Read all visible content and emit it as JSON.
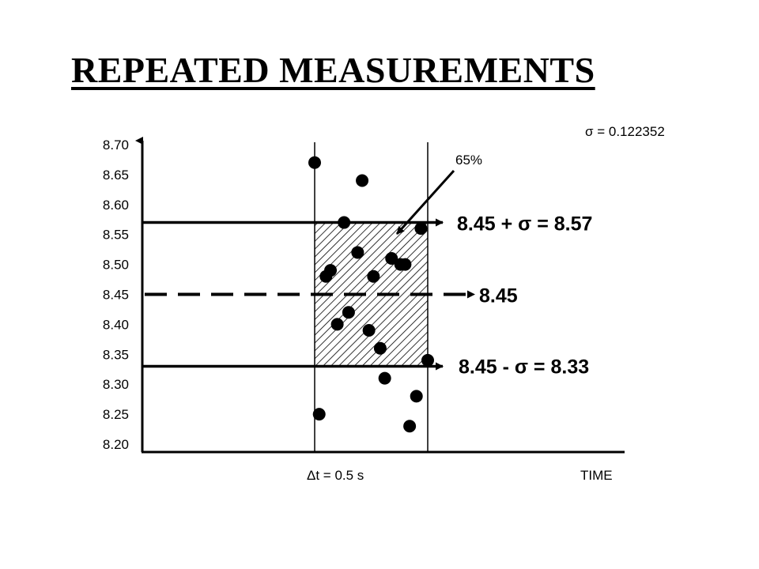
{
  "title": "REPEATED MEASUREMENTS",
  "chart_data": {
    "type": "scatter",
    "title": "REPEATED MEASUREMENTS",
    "xlabel": "TIME",
    "ylabel": "",
    "ylim": [
      8.2,
      8.7
    ],
    "y_ticks": [
      "8.70",
      "8.65",
      "8.60",
      "8.55",
      "8.50",
      "8.45",
      "8.40",
      "8.35",
      "8.30",
      "8.25",
      "8.20"
    ],
    "grid": false,
    "interval_label": "Δt = 0.5 s",
    "sigma_label": "σ = 0.122352",
    "percent_label": "65%",
    "mean": 8.45,
    "sigma": 0.122352,
    "band": [
      8.33,
      8.57
    ],
    "lines": {
      "upper": {
        "y": 8.57,
        "label": "8.45 + σ = 8.57"
      },
      "mean": {
        "y": 8.45,
        "label": "8.45"
      },
      "lower": {
        "y": 8.33,
        "label": "8.45 - σ = 8.33"
      }
    },
    "points": [
      {
        "t": 0.0,
        "y": 8.67
      },
      {
        "t": 0.21,
        "y": 8.64
      },
      {
        "t": 0.13,
        "y": 8.57
      },
      {
        "t": 0.19,
        "y": 8.52
      },
      {
        "t": 0.34,
        "y": 8.51
      },
      {
        "t": 0.4,
        "y": 8.5
      },
      {
        "t": 0.38,
        "y": 8.5
      },
      {
        "t": 0.07,
        "y": 8.49
      },
      {
        "t": 0.05,
        "y": 8.48
      },
      {
        "t": 0.26,
        "y": 8.48
      },
      {
        "t": 0.15,
        "y": 8.42
      },
      {
        "t": 0.1,
        "y": 8.4
      },
      {
        "t": 0.24,
        "y": 8.39
      },
      {
        "t": 0.29,
        "y": 8.36
      },
      {
        "t": 0.5,
        "y": 8.34
      },
      {
        "t": 0.31,
        "y": 8.31
      },
      {
        "t": 0.45,
        "y": 8.28
      },
      {
        "t": 0.02,
        "y": 8.25
      },
      {
        "t": 0.42,
        "y": 8.23
      },
      {
        "t": 0.47,
        "y": 8.56
      }
    ]
  }
}
